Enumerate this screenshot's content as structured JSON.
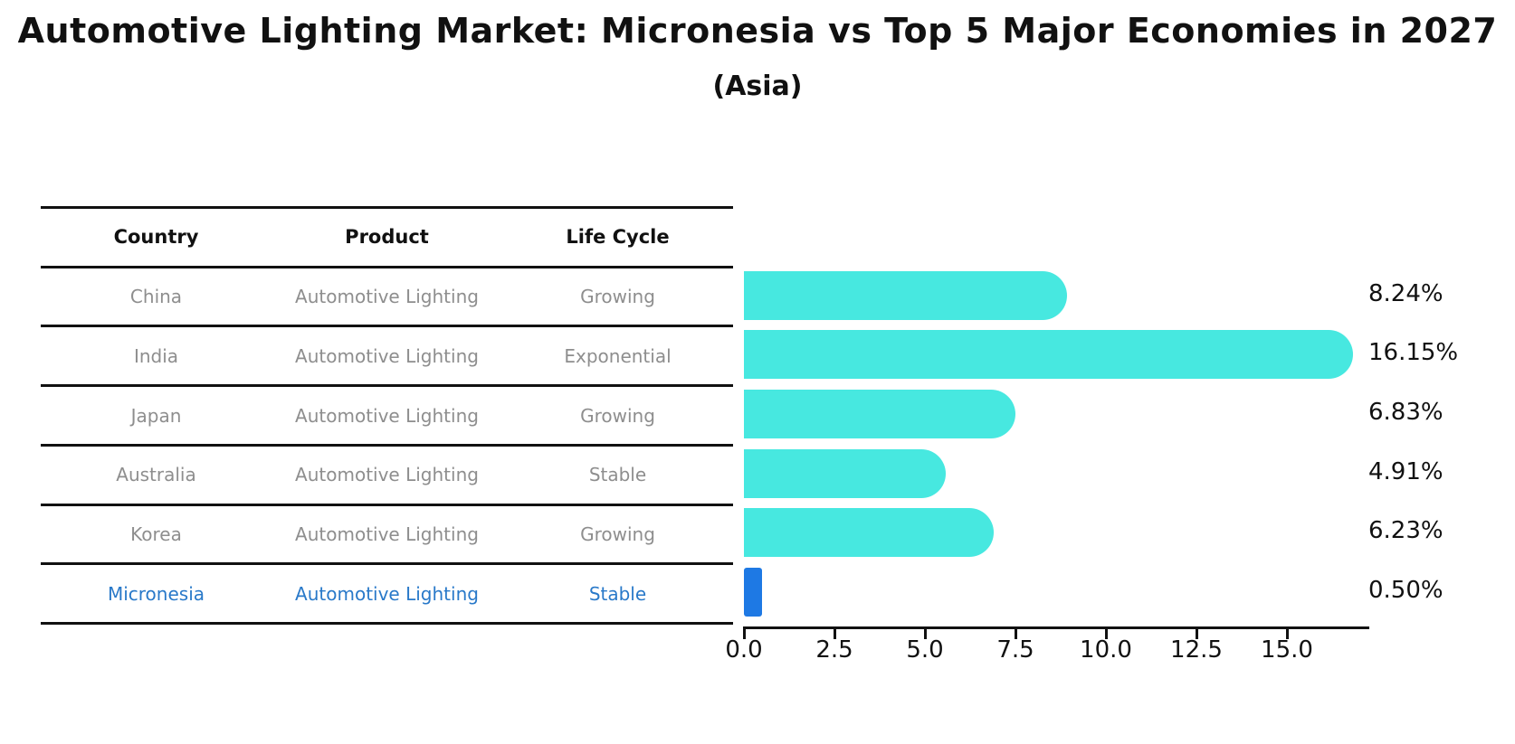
{
  "title": "Automotive Lighting Market: Micronesia vs Top 5 Major Economies in 2027",
  "subtitle": "(Asia)",
  "table": {
    "headers": [
      "Country",
      "Product",
      "Life Cycle"
    ],
    "rows": [
      {
        "country": "China",
        "product": "Automotive Lighting",
        "life_cycle": "Growing"
      },
      {
        "country": "India",
        "product": "Automotive Lighting",
        "life_cycle": "Exponential"
      },
      {
        "country": "Japan",
        "product": "Automotive Lighting",
        "life_cycle": "Growing"
      },
      {
        "country": "Australia",
        "product": "Automotive Lighting",
        "life_cycle": "Stable"
      },
      {
        "country": "Korea",
        "product": "Automotive Lighting",
        "life_cycle": "Growing"
      },
      {
        "country": "Micronesia",
        "product": "Automotive Lighting",
        "life_cycle": "Stable"
      }
    ]
  },
  "chart_data": {
    "type": "bar",
    "orientation": "horizontal",
    "title": "Automotive Lighting Market: Micronesia vs Top 5 Major Economies in 2027",
    "subtitle": "(Asia)",
    "categories": [
      "China",
      "India",
      "Japan",
      "Australia",
      "Korea",
      "Micronesia"
    ],
    "values": [
      8.24,
      16.15,
      6.83,
      4.91,
      6.23,
      0.5
    ],
    "value_labels": [
      "8.24%",
      "16.15%",
      "6.83%",
      "4.91%",
      "6.23%",
      "0.50%"
    ],
    "x_ticks": [
      0.0,
      2.5,
      5.0,
      7.5,
      10.0,
      12.5,
      15.0
    ],
    "x_tick_labels": [
      "0.0",
      "2.5",
      "5.0",
      "7.5",
      "10.0",
      "12.5",
      "15.0"
    ],
    "xlim": [
      0,
      17.2
    ],
    "xlabel": "",
    "ylabel": "",
    "grid": false,
    "legend": false,
    "highlight_category": "Micronesia",
    "bar_colors": [
      "#47E8E0",
      "#47E8E0",
      "#47E8E0",
      "#47E8E0",
      "#47E8E0",
      "#1E79E4"
    ]
  },
  "colors": {
    "bar_default": "#47E8E0",
    "bar_highlight": "#1E79E4",
    "highlight_text": "#2979C9",
    "row_text": "#8E8E8E",
    "header_text": "#111111",
    "axis": "#111111",
    "background": "#FFFFFF"
  }
}
